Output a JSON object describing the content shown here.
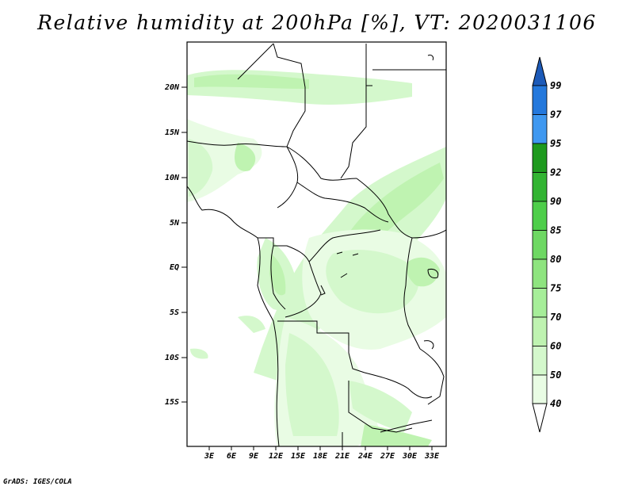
{
  "title": "Relative humidity at 200hPa [%], VT: 2020031106",
  "credit": "GrADS: IGES/COLA",
  "map": {
    "lat_labels": [
      "20N",
      "15N",
      "10N",
      "5N",
      "EQ",
      "5S",
      "10S",
      "15S"
    ],
    "lon_labels": [
      "3E",
      "6E",
      "9E",
      "12E",
      "15E",
      "18E",
      "21E",
      "24E",
      "27E",
      "30E",
      "33E"
    ]
  },
  "colorbar": {
    "labels": [
      "99",
      "97",
      "95",
      "92",
      "90",
      "85",
      "80",
      "75",
      "70",
      "60",
      "50",
      "40"
    ],
    "colors": {
      "40-50": "#e9fce4",
      "50-60": "#d4f8cc",
      "60-70": "#bff3b1",
      "70-75": "#a6ee99",
      "75-80": "#8ee47f",
      "80-85": "#6ed863",
      "85-90": "#4ece4a",
      "90-92": "#32b432",
      "92-95": "#1e9a1e",
      "95-97": "#3f98f0",
      "97-99": "#2478dc",
      "99+": "#1c5ab8"
    }
  }
}
